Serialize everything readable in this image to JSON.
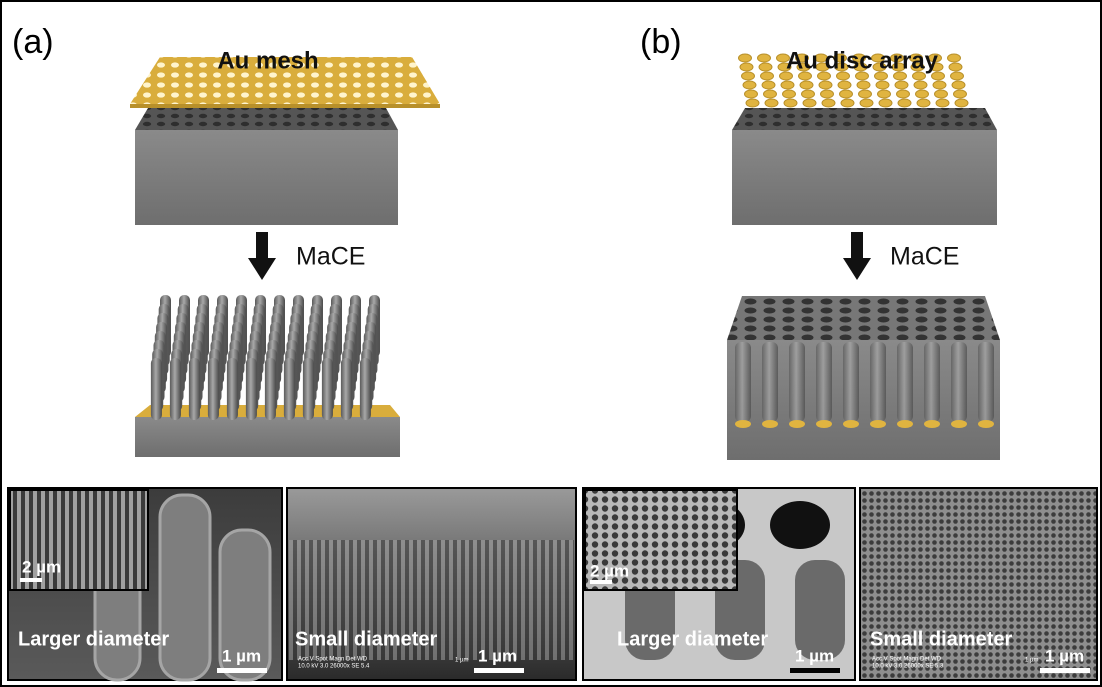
{
  "panels": [
    {
      "label": "(a)",
      "top_layer_label": "Au mesh",
      "process_label": "MaCE",
      "sem": [
        {
          "inset_scale_bar": "2 µm",
          "caption": "Larger diameter",
          "scale_bar": "1 µm"
        },
        {
          "caption": "Small diameter",
          "scale_bar": "1 µm",
          "metadata": [
            "Acc.V  Spot Magn    Det  WD",
            "10.0 kV 3.0  26000x  SE  5.4",
            "1 µm"
          ]
        }
      ]
    },
    {
      "label": "(b)",
      "top_layer_label": "Au disc array",
      "process_label": "MaCE",
      "sem": [
        {
          "inset_scale_bar": "2 µm",
          "caption": "Larger diameter",
          "scale_bar": "1 µm"
        },
        {
          "caption": "Small diameter",
          "scale_bar": "1 µm",
          "metadata": [
            "Acc.V  Spot Magn    Det  WD",
            "10.0 kV 3.0  26000x  SE  5.3",
            "1 µm"
          ]
        }
      ]
    }
  ]
}
